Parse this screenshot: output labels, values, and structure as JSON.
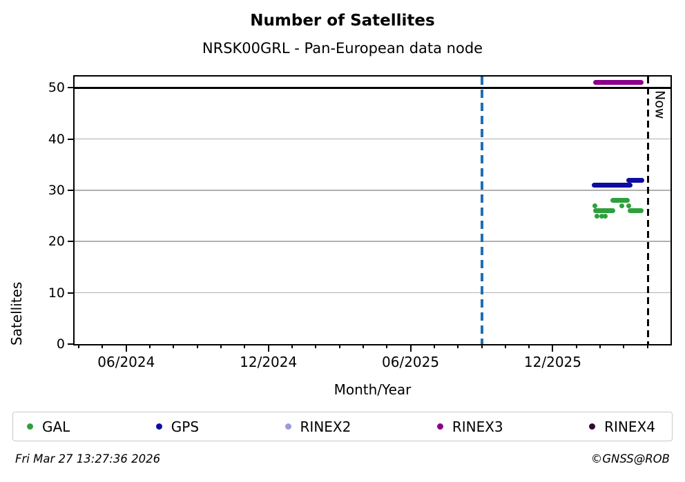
{
  "header": {
    "title": "Number of Satellites",
    "subtitle": "NRSK00GRL - Pan-European data node"
  },
  "chart_data": {
    "type": "scatter",
    "title": "Number of Satellites",
    "subtitle": "NRSK00GRL - Pan-European data node",
    "xlabel": "Month/Year",
    "ylabel": "Satellites",
    "x_axis": {
      "unit": "months since 2024-06-01",
      "min": -2.18,
      "max": 22.97,
      "major_ticks": [
        {
          "m": 0,
          "label": "06/2024"
        },
        {
          "m": 6,
          "label": "12/2024"
        },
        {
          "m": 12,
          "label": "06/2025"
        },
        {
          "m": 18,
          "label": "12/2025"
        }
      ],
      "minor_tick_every_months": 1
    },
    "y_axis": {
      "min": 0,
      "max": 52.2,
      "ticks": [
        0,
        10,
        20,
        30,
        40,
        50
      ]
    },
    "grid_values": [
      10,
      20,
      30,
      40
    ],
    "grid_color": "#b0b0b0",
    "hline_y": 50,
    "vlines": [
      {
        "m": 15.0,
        "date": "09/2025",
        "color": "#1f6fb4",
        "style": "dashed",
        "kind": "event",
        "label": ""
      },
      {
        "m": 22.03,
        "date": "2026-03-27",
        "color": "#000000",
        "style": "dashed",
        "kind": "now",
        "label": "Now"
      }
    ],
    "series": [
      {
        "name": "GAL",
        "color": "#2da03c",
        "segments": [
          {
            "y": 26,
            "m0": 19.71,
            "m1": 20.64
          },
          {
            "y": 28,
            "m0": 20.44,
            "m1": 21.25
          },
          {
            "y": 26,
            "m0": 21.16,
            "m1": 21.83
          }
        ],
        "points": [
          {
            "m": 19.77,
            "y": 27
          },
          {
            "m": 19.88,
            "y": 25
          },
          {
            "m": 20.06,
            "y": 25
          },
          {
            "m": 20.23,
            "y": 25
          },
          {
            "m": 20.93,
            "y": 27
          },
          {
            "m": 21.22,
            "y": 27
          }
        ]
      },
      {
        "name": "GPS",
        "color": "#0d0d9e",
        "segments": [
          {
            "y": 31,
            "m0": 19.65,
            "m1": 21.37
          },
          {
            "y": 32,
            "m0": 21.1,
            "m1": 21.85
          }
        ],
        "points": []
      },
      {
        "name": "RINEX2",
        "color": "#9a9ade",
        "segments": [],
        "points": []
      },
      {
        "name": "RINEX3",
        "color": "#8b008b",
        "segments": [
          {
            "y": 51,
            "m0": 19.71,
            "m1": 21.82
          }
        ],
        "points": []
      },
      {
        "name": "RINEX4",
        "color": "#320a32",
        "segments": [],
        "points": []
      }
    ],
    "legend": {
      "position": "bottom",
      "labels": [
        "GAL",
        "GPS",
        "RINEX2",
        "RINEX3",
        "RINEX4"
      ]
    }
  },
  "annotations": {
    "now_label": "Now"
  },
  "footer": {
    "timestamp": "Fri Mar 27 13:27:36 2026",
    "credit": "©GNSS@ROB"
  }
}
